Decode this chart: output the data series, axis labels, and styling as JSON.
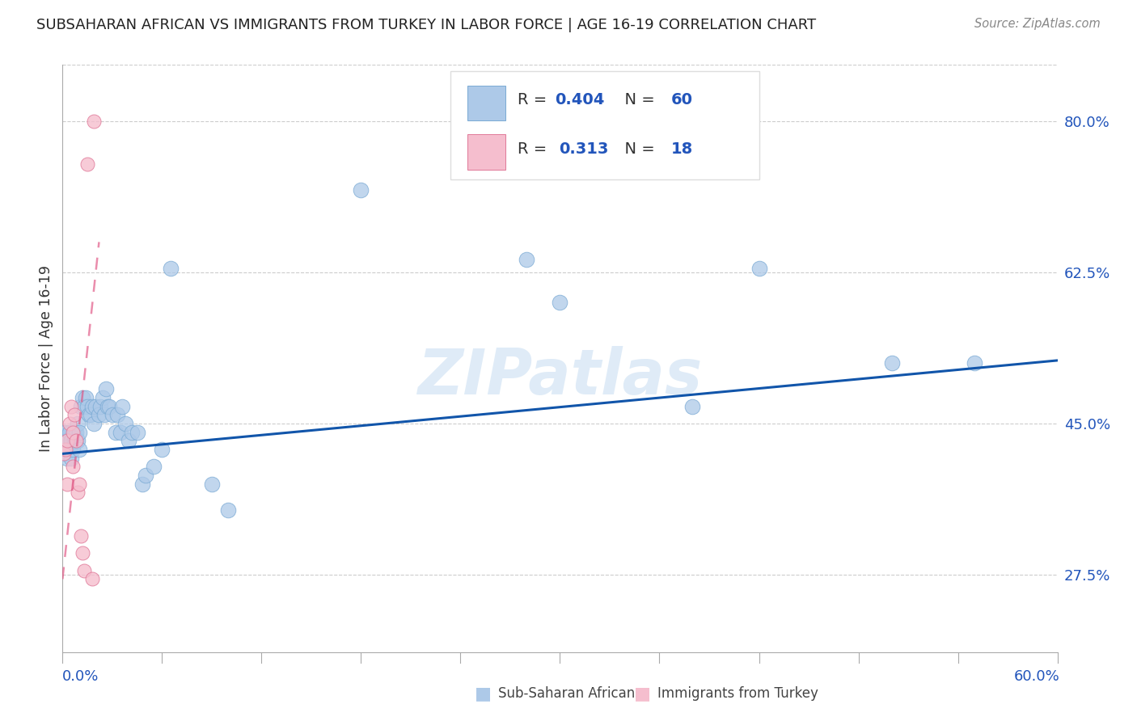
{
  "title": "SUBSAHARAN AFRICAN VS IMMIGRANTS FROM TURKEY IN LABOR FORCE | AGE 16-19 CORRELATION CHART",
  "source": "Source: ZipAtlas.com",
  "ylabel_labels": [
    "27.5%",
    "45.0%",
    "62.5%",
    "80.0%"
  ],
  "ylabel_values": [
    0.275,
    0.45,
    0.625,
    0.8
  ],
  "xmin": 0.0,
  "xmax": 0.6,
  "ymin": 0.185,
  "ymax": 0.865,
  "blue_R": 0.404,
  "blue_N": 60,
  "pink_R": 0.313,
  "pink_N": 18,
  "blue_color": "#adc9e8",
  "blue_edge": "#7aaad4",
  "blue_line_color": "#1155aa",
  "pink_color": "#f5bece",
  "pink_edge": "#e07898",
  "pink_line_color": "#e05080",
  "blue_label": "Sub-Saharan Africans",
  "pink_label": "Immigrants from Turkey",
  "watermark": "ZIPatlas",
  "blue_trend_y0": 0.415,
  "blue_trend_y1": 0.523,
  "pink_trend_x0": 0.0,
  "pink_trend_y0": 0.27,
  "pink_trend_x1": 0.022,
  "pink_trend_y1": 0.66,
  "blue_x": [
    0.001,
    0.001,
    0.001,
    0.002,
    0.002,
    0.003,
    0.003,
    0.004,
    0.004,
    0.005,
    0.005,
    0.006,
    0.007,
    0.007,
    0.008,
    0.008,
    0.009,
    0.009,
    0.01,
    0.01,
    0.011,
    0.012,
    0.013,
    0.014,
    0.015,
    0.016,
    0.017,
    0.018,
    0.019,
    0.02,
    0.022,
    0.023,
    0.024,
    0.025,
    0.026,
    0.027,
    0.028,
    0.03,
    0.032,
    0.033,
    0.035,
    0.036,
    0.038,
    0.04,
    0.042,
    0.045,
    0.048,
    0.05,
    0.055,
    0.06,
    0.065,
    0.09,
    0.1,
    0.18,
    0.28,
    0.3,
    0.38,
    0.42,
    0.5,
    0.55
  ],
  "blue_y": [
    0.415,
    0.43,
    0.44,
    0.42,
    0.44,
    0.41,
    0.43,
    0.44,
    0.42,
    0.43,
    0.41,
    0.42,
    0.44,
    0.43,
    0.44,
    0.43,
    0.45,
    0.43,
    0.44,
    0.42,
    0.47,
    0.48,
    0.47,
    0.48,
    0.47,
    0.46,
    0.46,
    0.47,
    0.45,
    0.47,
    0.46,
    0.47,
    0.48,
    0.46,
    0.49,
    0.47,
    0.47,
    0.46,
    0.44,
    0.46,
    0.44,
    0.47,
    0.45,
    0.43,
    0.44,
    0.44,
    0.38,
    0.39,
    0.4,
    0.42,
    0.63,
    0.38,
    0.35,
    0.72,
    0.64,
    0.59,
    0.47,
    0.63,
    0.52,
    0.52
  ],
  "pink_x": [
    0.001,
    0.002,
    0.003,
    0.003,
    0.004,
    0.005,
    0.006,
    0.006,
    0.007,
    0.008,
    0.009,
    0.01,
    0.011,
    0.012,
    0.013,
    0.015,
    0.018,
    0.019
  ],
  "pink_y": [
    0.415,
    0.42,
    0.43,
    0.38,
    0.45,
    0.47,
    0.44,
    0.4,
    0.46,
    0.43,
    0.37,
    0.38,
    0.32,
    0.3,
    0.28,
    0.75,
    0.27,
    0.8
  ]
}
